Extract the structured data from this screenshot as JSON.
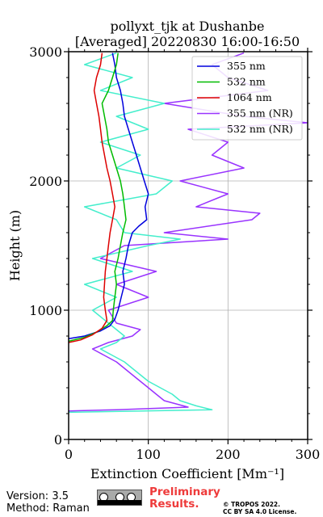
{
  "chart_data": {
    "type": "line",
    "title_line1": "pollyxt_tjk at Dushanbe",
    "title_line2": "[Averaged] 20220830 16:00-16:50",
    "xlabel": "Extinction Coefficient [Mm⁻¹]",
    "ylabel": "Height (m)",
    "xlim": [
      0,
      300
    ],
    "ylim": [
      0,
      3000
    ],
    "xticks": [
      0,
      100,
      200,
      300
    ],
    "yticks": [
      0,
      1000,
      2000,
      3000
    ],
    "grid": true,
    "legend_position": "top-right",
    "series": [
      {
        "name": "355 nm",
        "color": "#0000dd",
        "points": [
          [
            0,
            780
          ],
          [
            20,
            800
          ],
          [
            40,
            840
          ],
          [
            52,
            880
          ],
          [
            58,
            930
          ],
          [
            62,
            1000
          ],
          [
            66,
            1100
          ],
          [
            70,
            1200
          ],
          [
            68,
            1300
          ],
          [
            72,
            1400
          ],
          [
            75,
            1500
          ],
          [
            80,
            1600
          ],
          [
            88,
            1650
          ],
          [
            98,
            1700
          ],
          [
            96,
            1800
          ],
          [
            100,
            1900
          ],
          [
            95,
            2000
          ],
          [
            90,
            2100
          ],
          [
            85,
            2200
          ],
          [
            80,
            2300
          ],
          [
            75,
            2400
          ],
          [
            70,
            2500
          ],
          [
            68,
            2600
          ],
          [
            65,
            2700
          ],
          [
            60,
            2800
          ],
          [
            58,
            2900
          ],
          [
            55,
            2990
          ]
        ]
      },
      {
        "name": "532 nm",
        "color": "#00bb00",
        "points": [
          [
            0,
            760
          ],
          [
            20,
            790
          ],
          [
            35,
            830
          ],
          [
            48,
            880
          ],
          [
            55,
            920
          ],
          [
            56,
            1000
          ],
          [
            58,
            1100
          ],
          [
            60,
            1200
          ],
          [
            58,
            1300
          ],
          [
            62,
            1400
          ],
          [
            65,
            1500
          ],
          [
            68,
            1600
          ],
          [
            72,
            1700
          ],
          [
            70,
            1800
          ],
          [
            68,
            1900
          ],
          [
            65,
            2000
          ],
          [
            60,
            2100
          ],
          [
            55,
            2200
          ],
          [
            50,
            2300
          ],
          [
            48,
            2400
          ],
          [
            45,
            2500
          ],
          [
            42,
            2600
          ],
          [
            50,
            2700
          ],
          [
            55,
            2800
          ],
          [
            60,
            2900
          ],
          [
            62,
            2990
          ]
        ]
      },
      {
        "name": "1064 nm",
        "color": "#dd0000",
        "points": [
          [
            0,
            750
          ],
          [
            15,
            770
          ],
          [
            30,
            810
          ],
          [
            42,
            860
          ],
          [
            48,
            920
          ],
          [
            46,
            1000
          ],
          [
            44,
            1100
          ],
          [
            45,
            1200
          ],
          [
            46,
            1300
          ],
          [
            48,
            1400
          ],
          [
            50,
            1500
          ],
          [
            52,
            1600
          ],
          [
            55,
            1700
          ],
          [
            58,
            1800
          ],
          [
            55,
            1900
          ],
          [
            52,
            2000
          ],
          [
            48,
            2100
          ],
          [
            45,
            2200
          ],
          [
            42,
            2300
          ],
          [
            40,
            2400
          ],
          [
            38,
            2500
          ],
          [
            35,
            2600
          ],
          [
            32,
            2700
          ],
          [
            35,
            2800
          ],
          [
            40,
            2900
          ],
          [
            42,
            2990
          ]
        ]
      },
      {
        "name": "355 nm (NR)",
        "color": "#9933ff",
        "points": [
          [
            0,
            220
          ],
          [
            60,
            230
          ],
          [
            150,
            250
          ],
          [
            120,
            300
          ],
          [
            110,
            350
          ],
          [
            100,
            400
          ],
          [
            90,
            450
          ],
          [
            80,
            500
          ],
          [
            70,
            550
          ],
          [
            60,
            600
          ],
          [
            45,
            650
          ],
          [
            30,
            700
          ],
          [
            50,
            750
          ],
          [
            80,
            800
          ],
          [
            90,
            850
          ],
          [
            60,
            900
          ],
          [
            50,
            1000
          ],
          [
            100,
            1100
          ],
          [
            60,
            1200
          ],
          [
            110,
            1300
          ],
          [
            40,
            1400
          ],
          [
            70,
            1500
          ],
          [
            200,
            1550
          ],
          [
            120,
            1600
          ],
          [
            230,
            1700
          ],
          [
            240,
            1750
          ],
          [
            160,
            1800
          ],
          [
            200,
            1900
          ],
          [
            140,
            2000
          ],
          [
            220,
            2100
          ],
          [
            180,
            2200
          ],
          [
            200,
            2300
          ],
          [
            150,
            2400
          ],
          [
            300,
            2450
          ],
          [
            220,
            2500
          ],
          [
            120,
            2600
          ],
          [
            250,
            2700
          ],
          [
            200,
            2800
          ],
          [
            180,
            2900
          ],
          [
            220,
            2990
          ]
        ]
      },
      {
        "name": "532 nm (NR)",
        "color": "#44eecc",
        "points": [
          [
            0,
            210
          ],
          [
            180,
            230
          ],
          [
            160,
            260
          ],
          [
            140,
            300
          ],
          [
            130,
            350
          ],
          [
            115,
            400
          ],
          [
            100,
            450
          ],
          [
            90,
            500
          ],
          [
            80,
            550
          ],
          [
            70,
            600
          ],
          [
            55,
            650
          ],
          [
            40,
            700
          ],
          [
            60,
            750
          ],
          [
            70,
            800
          ],
          [
            50,
            900
          ],
          [
            30,
            1000
          ],
          [
            60,
            1100
          ],
          [
            20,
            1200
          ],
          [
            80,
            1300
          ],
          [
            30,
            1400
          ],
          [
            100,
            1500
          ],
          [
            140,
            1550
          ],
          [
            70,
            1600
          ],
          [
            60,
            1700
          ],
          [
            20,
            1800
          ],
          [
            110,
            1900
          ],
          [
            130,
            2000
          ],
          [
            60,
            2100
          ],
          [
            90,
            2200
          ],
          [
            40,
            2300
          ],
          [
            100,
            2400
          ],
          [
            60,
            2500
          ],
          [
            120,
            2600
          ],
          [
            40,
            2700
          ],
          [
            80,
            2800
          ],
          [
            20,
            2900
          ],
          [
            60,
            2990
          ]
        ]
      }
    ]
  },
  "footer": {
    "version": "Version: 3.5",
    "method": "Method: Raman",
    "preliminary_line1": "Preliminary",
    "preliminary_line2": "Results.",
    "copyright_line1": "© TROPOS 2022.",
    "copyright_line2": "CC BY SA 4.0 License.",
    "license_badge": "cc-by-sa-icon"
  }
}
